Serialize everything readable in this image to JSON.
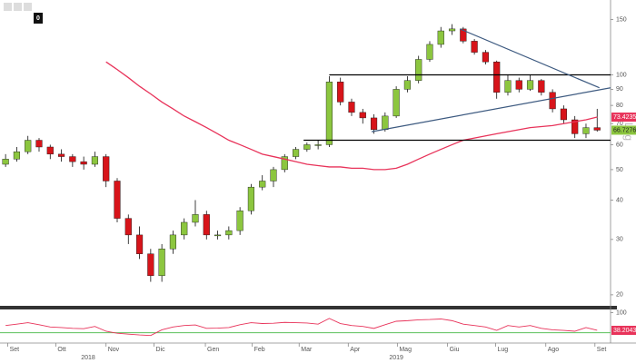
{
  "chart_data": {
    "type": "candlestick",
    "log_scale": true,
    "up_color": "#8cc63f",
    "down_color": "#d7141a",
    "open": [
      52,
      54,
      57,
      62,
      59,
      56,
      55,
      53,
      52,
      55,
      46,
      35,
      31,
      27,
      23,
      28,
      31,
      34,
      36,
      31,
      31,
      32,
      37,
      44,
      46,
      50,
      55,
      58,
      60,
      60,
      95,
      82,
      76,
      73,
      67,
      74,
      90,
      96,
      112,
      125,
      138,
      140,
      128,
      118,
      110,
      88,
      96,
      90,
      96,
      88,
      78,
      72,
      65,
      68
    ],
    "high": [
      56,
      59,
      64,
      63,
      60,
      58,
      56,
      55,
      57,
      56,
      47,
      36,
      33,
      28,
      29,
      32,
      35,
      40,
      37,
      32,
      33,
      38,
      45,
      48,
      51,
      56,
      59,
      61,
      62,
      99,
      98,
      84,
      78,
      75,
      76,
      92,
      99,
      115,
      128,
      142,
      145,
      142,
      130,
      120,
      111,
      100,
      98,
      100,
      97,
      90,
      80,
      74,
      70,
      78
    ],
    "low": [
      51,
      53,
      56,
      57,
      54,
      53,
      51,
      50,
      51,
      44,
      34,
      29,
      26,
      22,
      22,
      27,
      30,
      33,
      30,
      30,
      30,
      31,
      36,
      43,
      44,
      49,
      54,
      57,
      58,
      59,
      80,
      74,
      70,
      65,
      66,
      73,
      88,
      94,
      110,
      122,
      134,
      126,
      116,
      108,
      84,
      86,
      88,
      89,
      86,
      76,
      70,
      63,
      63,
      66
    ],
    "close": [
      54,
      57,
      62,
      59,
      56,
      55,
      53,
      52,
      55,
      46,
      35,
      31,
      27,
      23,
      28,
      31,
      34,
      36,
      31,
      31,
      32,
      37,
      44,
      46,
      50,
      55,
      58,
      60,
      60,
      95,
      82,
      76,
      73,
      67,
      74,
      90,
      96,
      112,
      125,
      138,
      140,
      128,
      118,
      110,
      88,
      96,
      90,
      96,
      88,
      78,
      72,
      65,
      68,
      66.7276
    ],
    "ylim": [
      18.7,
      173
    ],
    "yticks": [
      20,
      30,
      40,
      50,
      60,
      70,
      80,
      90,
      100,
      150
    ],
    "xlim": [
      -0.5,
      54.2
    ],
    "xticks": [
      {
        "value": 0.2,
        "label": "Set"
      },
      {
        "value": 4.5,
        "label": "Ott"
      },
      {
        "value": 9,
        "label": "Nov"
      },
      {
        "value": 13.3,
        "label": "Dic"
      },
      {
        "value": 17.9,
        "label": "Gen"
      },
      {
        "value": 22.1,
        "label": "Feb"
      },
      {
        "value": 26.3,
        "label": "Mar"
      },
      {
        "value": 30.7,
        "label": "Apr"
      },
      {
        "value": 35.1,
        "label": "Mag"
      },
      {
        "value": 39.6,
        "label": "Giu"
      },
      {
        "value": 43.9,
        "label": "Lug"
      },
      {
        "value": 48.4,
        "label": "Ago"
      },
      {
        "value": 52.8,
        "label": "Set"
      }
    ],
    "year_labels": [
      {
        "value": 7.4,
        "label": "2018"
      },
      {
        "value": 35,
        "label": "2019"
      }
    ],
    "ma": {
      "color": "#e8335a",
      "values": [
        null,
        null,
        null,
        null,
        null,
        null,
        null,
        null,
        null,
        110,
        104,
        98,
        92,
        87,
        82,
        78,
        74,
        71,
        68,
        65,
        62,
        60,
        58,
        56,
        55,
        54,
        53,
        52,
        51.5,
        51,
        51,
        50.5,
        50.5,
        50,
        50,
        50.5,
        52,
        54,
        56,
        58,
        60,
        62,
        63,
        64,
        65,
        66,
        67,
        68,
        68.5,
        69,
        70,
        71,
        72,
        73.4235
      ]
    },
    "trend_lines": [
      {
        "color": "#000000",
        "points": [
          [
            29,
            100
          ],
          [
            54.2,
            100
          ]
        ]
      },
      {
        "color": "#000000",
        "points": [
          [
            26.7,
            62
          ],
          [
            54.2,
            62
          ]
        ]
      },
      {
        "color": "#3d5a80",
        "points": [
          [
            40.7,
            140
          ],
          [
            53.2,
            91
          ]
        ]
      },
      {
        "color": "#3d5a80",
        "points": [
          [
            32.8,
            66
          ],
          [
            54.2,
            91
          ]
        ]
      }
    ],
    "axis_label": "Log",
    "toolbar": {
      "count": 0
    },
    "indicator": {
      "color": "#e8335a",
      "level": 30,
      "level_color": "#5cc15c",
      "ylim": [
        0,
        105
      ],
      "yticks": [
        100
      ],
      "values": [
        55,
        60,
        65,
        58,
        50,
        48,
        45,
        44,
        52,
        35,
        28,
        25,
        22,
        20,
        40,
        50,
        55,
        57,
        45,
        46,
        48,
        58,
        65,
        62,
        63,
        66,
        65,
        64,
        60,
        80,
        62,
        55,
        52,
        45,
        58,
        70,
        72,
        75,
        76,
        78,
        72,
        60,
        55,
        50,
        38,
        55,
        50,
        55,
        45,
        40,
        38,
        35,
        48,
        38.2043
      ]
    }
  }
}
